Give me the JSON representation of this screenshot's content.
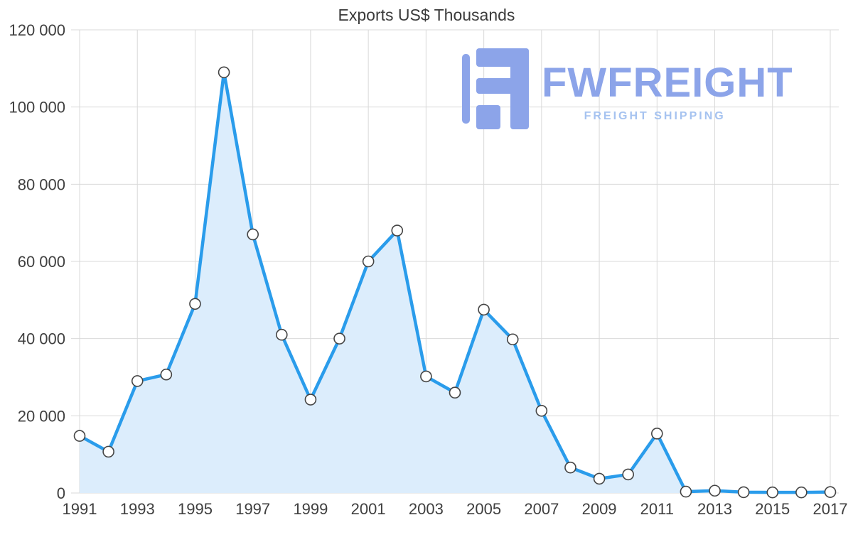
{
  "title": "Exports US$ Thousands",
  "watermark": {
    "brand": "FWFREIGHT",
    "tagline": "FREIGHT SHIPPING",
    "brand_color": "#8ca4e9",
    "tagline_color": "#a6c3f0"
  },
  "chart_data": {
    "type": "area",
    "title": "Exports US$ Thousands",
    "xlabel": "",
    "ylabel": "",
    "x": [
      1991,
      1992,
      1993,
      1994,
      1995,
      1996,
      1997,
      1998,
      1999,
      2000,
      2001,
      2002,
      2003,
      2004,
      2005,
      2006,
      2007,
      2008,
      2009,
      2010,
      2011,
      2012,
      2013,
      2014,
      2015,
      2016,
      2017
    ],
    "values": [
      14800,
      10700,
      29000,
      30700,
      49000,
      109000,
      67000,
      41000,
      24200,
      40000,
      60000,
      68000,
      30200,
      26000,
      47500,
      39800,
      21300,
      6600,
      3700,
      4800,
      15400,
      350,
      600,
      200,
      150,
      150,
      250
    ],
    "ylim": [
      0,
      120000
    ],
    "ytick_step": 20000,
    "ytick_labels": [
      "0",
      "20 000",
      "40 000",
      "60 000",
      "80 000",
      "100 000",
      "120 000"
    ],
    "xticks": [
      1991,
      1993,
      1995,
      1997,
      1999,
      2001,
      2003,
      2005,
      2007,
      2009,
      2011,
      2013,
      2015,
      2017
    ],
    "grid": true,
    "legend": "none",
    "line_color": "#2a9ceb",
    "fill_color": "#dcedfc",
    "grid_color": "#d9d9d9",
    "marker": "white-circle",
    "marker_stroke": "#444444",
    "text_color": "#3f3f3f"
  }
}
